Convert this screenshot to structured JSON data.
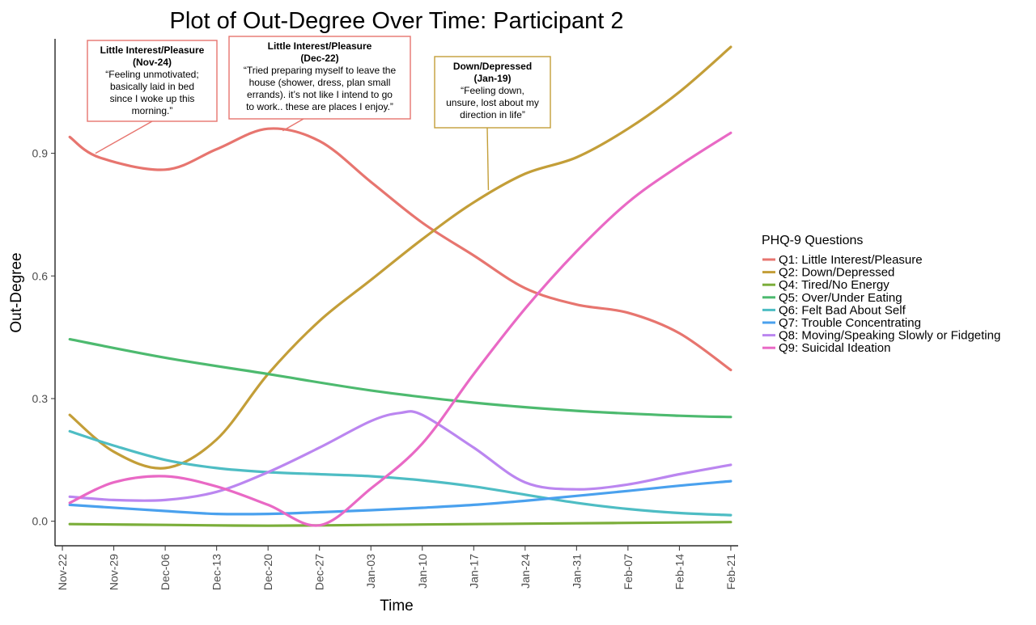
{
  "chart_data": {
    "type": "line",
    "title": "Plot of Out-Degree Over Time: Participant 2",
    "xlabel": "Time",
    "ylabel": "Out-Degree",
    "x_ticks": [
      "Nov-22",
      "Nov-29",
      "Dec-06",
      "Dec-13",
      "Dec-20",
      "Dec-27",
      "Jan-03",
      "Jan-10",
      "Jan-17",
      "Jan-24",
      "Jan-31",
      "Feb-07",
      "Feb-14",
      "Feb-21"
    ],
    "y_ticks": [
      0.0,
      0.3,
      0.6,
      0.9
    ],
    "y_tick_labels": [
      "0.0",
      "0.3",
      "0.6",
      "0.9"
    ],
    "ylim": [
      -0.06,
      1.18
    ],
    "x_range_days": [
      -1,
      92
    ],
    "legend_title": "PHQ-9 Questions",
    "legend_position": "right",
    "series": [
      {
        "name": "Q1: Little Interest/Pleasure",
        "color": "#E7756F",
        "x": [
          1,
          5,
          14,
          21,
          28,
          35,
          42,
          49,
          56,
          63,
          70,
          77,
          84,
          91
        ],
        "y": [
          0.94,
          0.89,
          0.86,
          0.91,
          0.96,
          0.93,
          0.83,
          0.73,
          0.65,
          0.57,
          0.53,
          0.51,
          0.46,
          0.37
        ]
      },
      {
        "name": "Q2: Down/Depressed",
        "color": "#C39E38",
        "x": [
          1,
          7,
          14,
          21,
          28,
          35,
          42,
          49,
          56,
          63,
          70,
          77,
          84,
          91
        ],
        "y": [
          0.26,
          0.17,
          0.13,
          0.2,
          0.36,
          0.49,
          0.59,
          0.69,
          0.78,
          0.85,
          0.89,
          0.96,
          1.05,
          1.16
        ]
      },
      {
        "name": "Q4: Tired/No Energy",
        "color": "#7BAE3A",
        "x": [
          1,
          14,
          28,
          42,
          56,
          70,
          84,
          91
        ],
        "y": [
          -0.007,
          -0.009,
          -0.011,
          -0.009,
          -0.007,
          -0.005,
          -0.003,
          -0.002
        ]
      },
      {
        "name": "Q5: Over/Under Eating",
        "color": "#4DBA6F",
        "x": [
          1,
          14,
          28,
          42,
          56,
          70,
          84,
          91
        ],
        "y": [
          0.445,
          0.4,
          0.36,
          0.32,
          0.29,
          0.27,
          0.258,
          0.255
        ]
      },
      {
        "name": "Q6: Felt Bad About Self",
        "color": "#4EBDC4",
        "x": [
          1,
          7,
          14,
          21,
          28,
          35,
          42,
          49,
          56,
          63,
          70,
          77,
          84,
          91
        ],
        "y": [
          0.22,
          0.185,
          0.15,
          0.13,
          0.12,
          0.115,
          0.11,
          0.1,
          0.085,
          0.065,
          0.045,
          0.03,
          0.02,
          0.015
        ]
      },
      {
        "name": "Q7: Trouble Concentrating",
        "color": "#4AA1EE",
        "x": [
          1,
          14,
          21,
          28,
          35,
          42,
          49,
          56,
          63,
          70,
          77,
          84,
          91
        ],
        "y": [
          0.04,
          0.025,
          0.018,
          0.018,
          0.022,
          0.027,
          0.033,
          0.04,
          0.05,
          0.062,
          0.074,
          0.087,
          0.098
        ]
      },
      {
        "name": "Q8: Moving/Speaking Slowly or Fidgeting",
        "color": "#BB86F0",
        "x": [
          1,
          7,
          14,
          21,
          28,
          35,
          42,
          46,
          49,
          56,
          63,
          70,
          77,
          84,
          91
        ],
        "y": [
          0.06,
          0.052,
          0.052,
          0.072,
          0.12,
          0.18,
          0.245,
          0.265,
          0.26,
          0.18,
          0.095,
          0.078,
          0.09,
          0.115,
          0.138
        ]
      },
      {
        "name": "Q9: Suicidal Ideation",
        "color": "#E969C5",
        "x": [
          1,
          7,
          14,
          21,
          28,
          35,
          42,
          49,
          56,
          63,
          70,
          77,
          84,
          91
        ],
        "y": [
          0.045,
          0.095,
          0.11,
          0.085,
          0.04,
          -0.01,
          0.08,
          0.19,
          0.36,
          0.52,
          0.66,
          0.78,
          0.87,
          0.95
        ]
      }
    ],
    "annotations": [
      {
        "header": "Little Interest/Pleasure",
        "date": "(Nov-24)",
        "lines": [
          "“Feeling unmotivated;",
          "basically laid in bed",
          "since I woke up this",
          "morning.”"
        ],
        "series": "Q1: Little Interest/Pleasure",
        "point_x": 4.5,
        "point_y": 0.9
      },
      {
        "header": "Little Interest/Pleasure",
        "date": "(Dec-22)",
        "lines": [
          "“Tried preparing myself to leave the",
          "house (shower, dress, plan small",
          "errands). it’s not like I intend to go",
          "to work.. these are places I enjoy.”"
        ],
        "series": "Q1: Little Interest/Pleasure",
        "point_x": 30,
        "point_y": 0.955
      },
      {
        "header": "Down/Depressed",
        "date": "(Jan-19)",
        "lines": [
          "“Feeling down,",
          "unsure, lost about my",
          "direction in life”"
        ],
        "series": "Q2: Down/Depressed",
        "point_x": 58,
        "point_y": 0.81
      }
    ]
  }
}
